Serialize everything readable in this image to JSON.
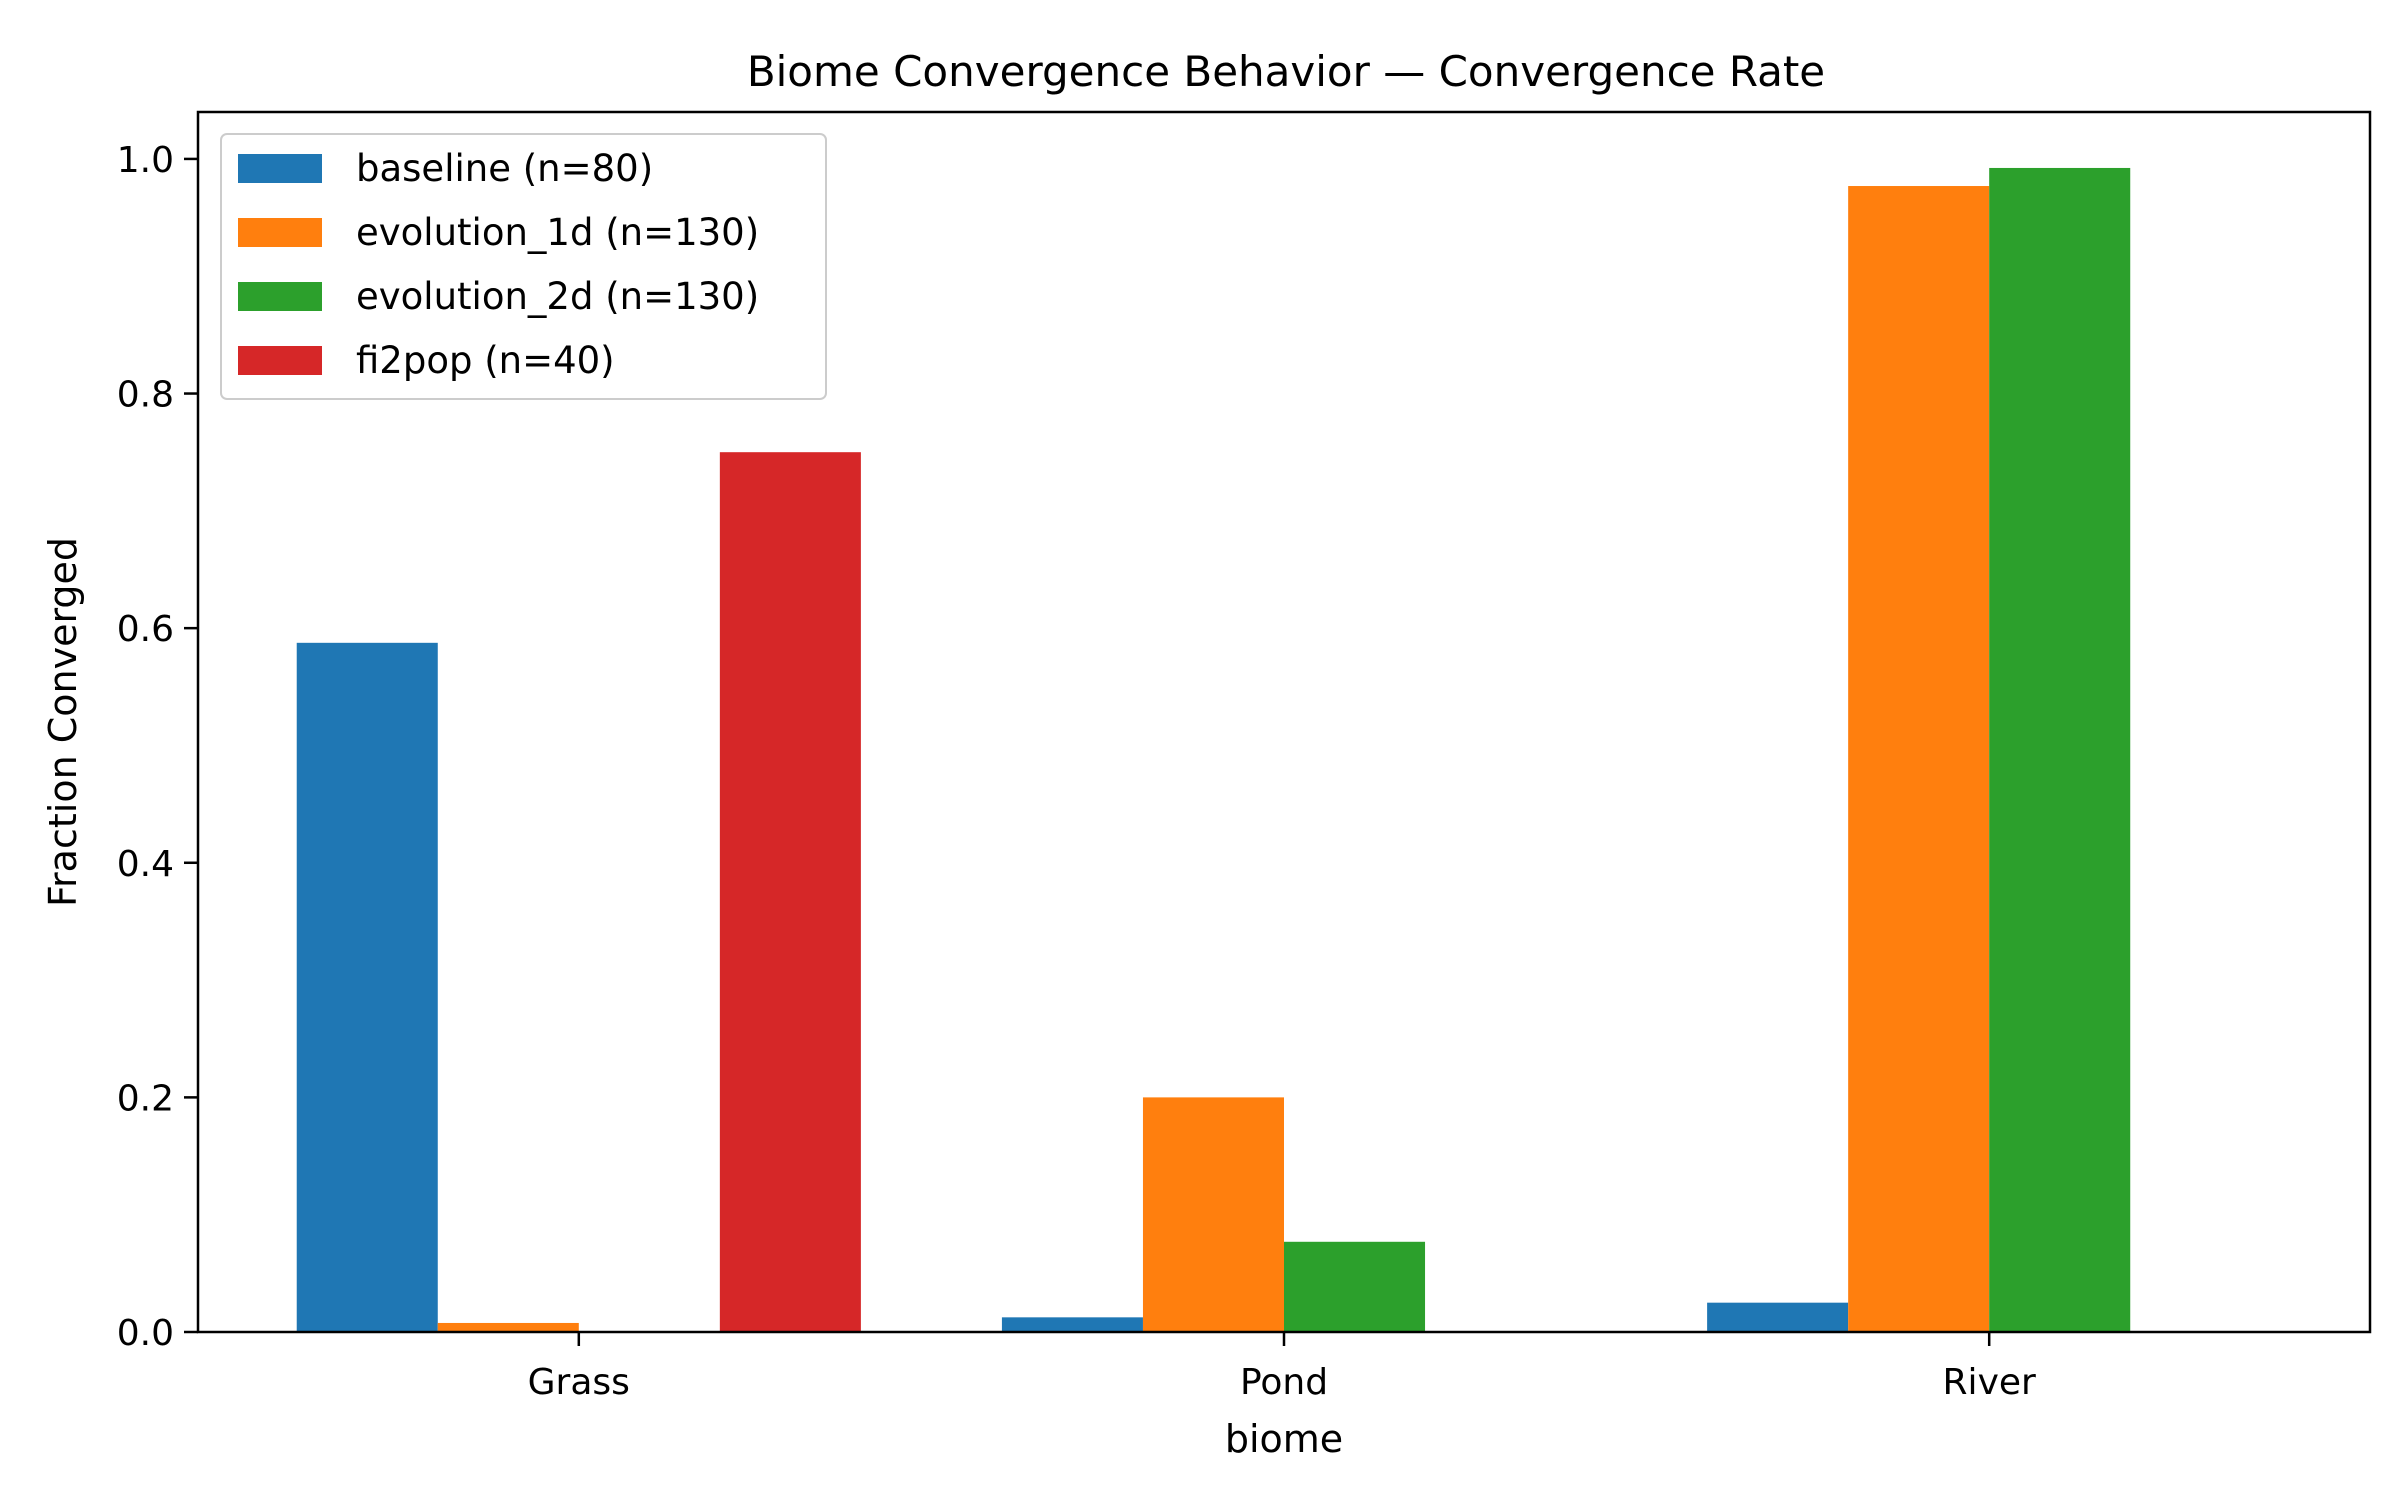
{
  "chart_data": {
    "type": "bar",
    "title": "Biome Convergence Behavior — Convergence Rate",
    "xlabel": "biome",
    "ylabel": "Fraction Converged",
    "categories": [
      "Grass",
      "Pond",
      "River"
    ],
    "ylim": [
      0,
      1.04
    ],
    "yticks": [
      0.0,
      0.2,
      0.4,
      0.6,
      0.8,
      1.0
    ],
    "ytick_labels": [
      "0.0",
      "0.2",
      "0.4",
      "0.6",
      "0.8",
      "1.0"
    ],
    "grid": false,
    "legend_position": "top-left",
    "series": [
      {
        "name": "baseline (n=80)",
        "color": "#1f77b4",
        "values": [
          0.5875,
          0.0125,
          0.025
        ]
      },
      {
        "name": "evolution_1d (n=130)",
        "color": "#ff7f0e",
        "values": [
          0.0077,
          0.2,
          0.9769
        ]
      },
      {
        "name": "evolution_2d (n=130)",
        "color": "#2ca02c",
        "values": [
          0.0,
          0.0769,
          0.9923
        ]
      },
      {
        "name": "fi2pop (n=40)",
        "color": "#d62728",
        "values": [
          0.75,
          0.0,
          0.0
        ]
      }
    ]
  }
}
